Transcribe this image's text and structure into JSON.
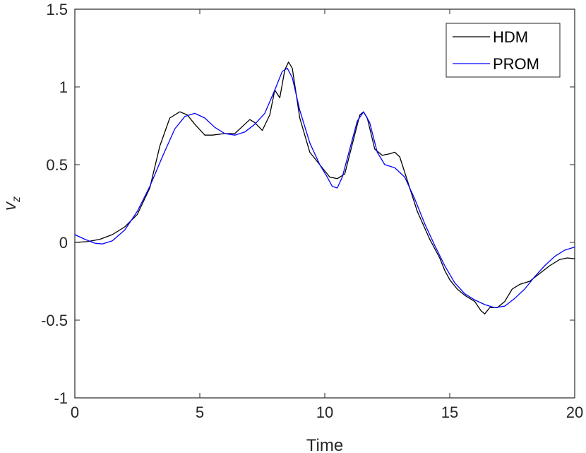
{
  "chart_data": {
    "type": "line",
    "title": "",
    "xlabel": "Time",
    "ylabel": "v",
    "ylabel_subscript": "z",
    "xlim": [
      0,
      20
    ],
    "ylim": [
      -1,
      1.5
    ],
    "xticks": [
      0,
      5,
      10,
      15,
      20
    ],
    "xtick_labels": [
      "0",
      "5",
      "10",
      "15",
      "20"
    ],
    "yticks": [
      -1,
      -0.5,
      0,
      0.5,
      1,
      1.5
    ],
    "ytick_labels": [
      "-1",
      "-0.5",
      "0",
      "0.5",
      "1",
      "1.5"
    ],
    "grid": false,
    "legend_position": "top-right",
    "series": [
      {
        "name": "HDM",
        "color": "#000000",
        "x": [
          0,
          0.5,
          1,
          1.5,
          2,
          2.5,
          3,
          3.4,
          3.8,
          4.2,
          4.5,
          4.8,
          5.2,
          5.5,
          6,
          6.4,
          6.8,
          7.0,
          7.2,
          7.5,
          7.8,
          8.0,
          8.2,
          8.4,
          8.55,
          8.7,
          9.0,
          9.4,
          9.8,
          10.2,
          10.5,
          10.8,
          11.1,
          11.4,
          11.55,
          11.7,
          12.0,
          12.3,
          12.6,
          12.8,
          13.0,
          13.3,
          13.7,
          14.2,
          14.6,
          14.8,
          15.0,
          15.3,
          15.6,
          16.0,
          16.25,
          16.4,
          16.6,
          16.9,
          17.2,
          17.5,
          17.8,
          18.2,
          18.6,
          19.0,
          19.4,
          19.7,
          20
        ],
        "values": [
          0.0,
          0.005,
          0.02,
          0.05,
          0.1,
          0.18,
          0.35,
          0.62,
          0.8,
          0.84,
          0.82,
          0.76,
          0.69,
          0.69,
          0.7,
          0.7,
          0.76,
          0.79,
          0.77,
          0.72,
          0.82,
          0.98,
          0.93,
          1.11,
          1.16,
          1.12,
          0.8,
          0.58,
          0.5,
          0.42,
          0.41,
          0.44,
          0.63,
          0.82,
          0.84,
          0.8,
          0.6,
          0.56,
          0.57,
          0.58,
          0.55,
          0.4,
          0.2,
          0.02,
          -0.1,
          -0.18,
          -0.24,
          -0.3,
          -0.34,
          -0.38,
          -0.44,
          -0.46,
          -0.42,
          -0.42,
          -0.38,
          -0.3,
          -0.27,
          -0.25,
          -0.2,
          -0.15,
          -0.11,
          -0.1,
          -0.105
        ]
      },
      {
        "name": "PROM",
        "color": "#0000ff",
        "x": [
          0,
          0.4,
          0.8,
          1.1,
          1.5,
          2.0,
          2.5,
          3.0,
          3.5,
          4.0,
          4.4,
          4.8,
          5.2,
          5.6,
          6.0,
          6.4,
          6.8,
          7.2,
          7.6,
          8.0,
          8.3,
          8.5,
          8.7,
          9.0,
          9.4,
          9.8,
          10.1,
          10.3,
          10.5,
          10.7,
          11.0,
          11.3,
          11.55,
          11.8,
          12.1,
          12.4,
          12.8,
          13.2,
          13.6,
          14.0,
          14.4,
          14.8,
          15.2,
          15.6,
          16.0,
          16.4,
          16.8,
          17.2,
          17.6,
          18.0,
          18.4,
          18.8,
          19.2,
          19.6,
          20
        ],
        "values": [
          0.05,
          0.02,
          -0.005,
          -0.01,
          0.01,
          0.08,
          0.2,
          0.36,
          0.55,
          0.73,
          0.81,
          0.83,
          0.8,
          0.74,
          0.7,
          0.69,
          0.71,
          0.76,
          0.83,
          0.98,
          1.1,
          1.12,
          1.06,
          0.85,
          0.64,
          0.5,
          0.42,
          0.36,
          0.35,
          0.42,
          0.6,
          0.78,
          0.84,
          0.77,
          0.58,
          0.5,
          0.48,
          0.42,
          0.28,
          0.12,
          -0.02,
          -0.15,
          -0.26,
          -0.33,
          -0.37,
          -0.4,
          -0.42,
          -0.41,
          -0.36,
          -0.3,
          -0.22,
          -0.15,
          -0.09,
          -0.05,
          -0.03
        ]
      }
    ]
  }
}
